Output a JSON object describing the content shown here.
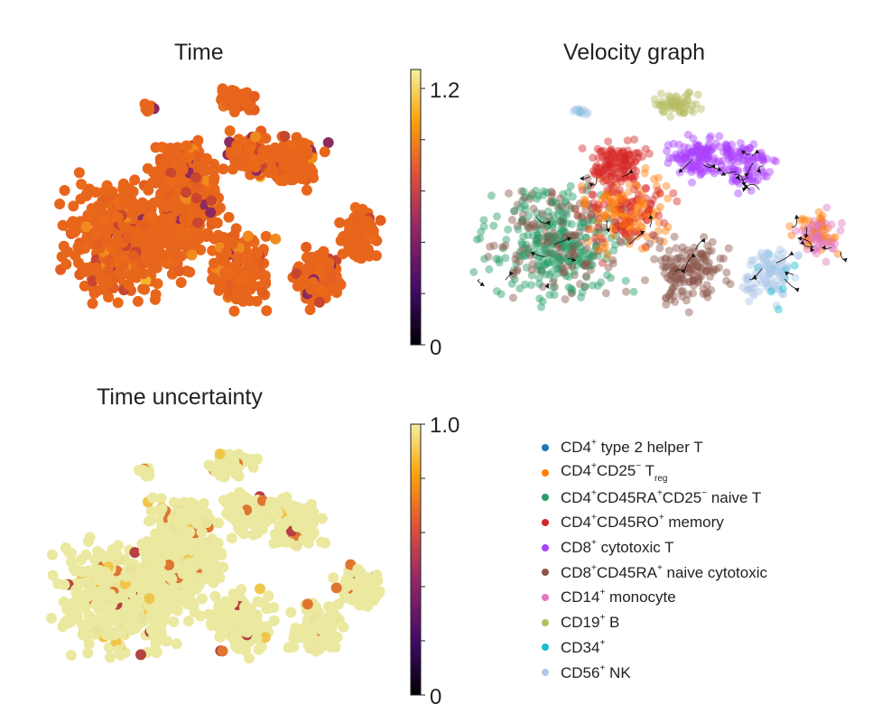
{
  "chart_data": [
    {
      "type": "scatter",
      "title": "Time",
      "colorbar": {
        "colormap": "inferno-like",
        "min_label": "0",
        "max_label": "1.2",
        "range": [
          0,
          1.25
        ]
      },
      "dominant_value": 0.95,
      "xlabel": "",
      "ylabel": ""
    },
    {
      "type": "scatter",
      "title": "Velocity graph",
      "overlay": "velocity streamlines with arrows",
      "color_by": "cell type (see legend)",
      "xlabel": "",
      "ylabel": ""
    },
    {
      "type": "scatter",
      "title": "Time uncertainty",
      "colorbar": {
        "colormap": "inferno-like",
        "min_label": "0",
        "max_label": "1.0",
        "range": [
          0,
          1.0
        ]
      },
      "dominant_value": 0.98,
      "xlabel": "",
      "ylabel": ""
    }
  ],
  "legend": {
    "items": [
      {
        "key": "cd4_th2",
        "color": "#1f77b4",
        "parts": [
          [
            "CD4",
            ""
          ],
          [
            "+",
            "sup"
          ],
          [
            " type 2 helper T",
            ""
          ]
        ]
      },
      {
        "key": "cd4_treg",
        "color": "#ff7f0e",
        "parts": [
          [
            "CD4",
            ""
          ],
          [
            "+",
            "sup"
          ],
          [
            "CD25",
            ""
          ],
          [
            "−",
            "sup"
          ],
          [
            " T",
            ""
          ],
          [
            "reg",
            "sub"
          ]
        ]
      },
      {
        "key": "cd4_naive",
        "color": "#279e68",
        "parts": [
          [
            "CD4",
            ""
          ],
          [
            "+",
            "sup"
          ],
          [
            "CD45RA",
            ""
          ],
          [
            "+",
            "sup"
          ],
          [
            "CD25",
            ""
          ],
          [
            "−",
            "sup"
          ],
          [
            " naive T",
            ""
          ]
        ]
      },
      {
        "key": "cd4_memory",
        "color": "#d62728",
        "parts": [
          [
            "CD4",
            ""
          ],
          [
            "+",
            "sup"
          ],
          [
            "CD45RO",
            ""
          ],
          [
            "+",
            "sup"
          ],
          [
            " memory",
            ""
          ]
        ]
      },
      {
        "key": "cd8_cytotoxic",
        "color": "#aa40fc",
        "parts": [
          [
            "CD8",
            ""
          ],
          [
            "+",
            "sup"
          ],
          [
            " cytotoxic T",
            ""
          ]
        ]
      },
      {
        "key": "cd8_naive",
        "color": "#8c564b",
        "parts": [
          [
            "CD8",
            ""
          ],
          [
            "+",
            "sup"
          ],
          [
            "CD45RA",
            ""
          ],
          [
            "+",
            "sup"
          ],
          [
            " naive cytotoxic",
            ""
          ]
        ]
      },
      {
        "key": "cd14_mono",
        "color": "#e377c2",
        "parts": [
          [
            "CD14",
            ""
          ],
          [
            "+",
            "sup"
          ],
          [
            " monocyte",
            ""
          ]
        ]
      },
      {
        "key": "cd19_b",
        "color": "#b5bd61",
        "parts": [
          [
            "CD19",
            ""
          ],
          [
            "+",
            "sup"
          ],
          [
            " B",
            ""
          ]
        ]
      },
      {
        "key": "cd34",
        "color": "#17becf",
        "parts": [
          [
            "CD34",
            ""
          ],
          [
            "+",
            "sup"
          ]
        ]
      },
      {
        "key": "cd56_nk",
        "color": "#aec7e8",
        "parts": [
          [
            "CD56",
            ""
          ],
          [
            "+",
            "sup"
          ],
          [
            " NK",
            ""
          ]
        ]
      }
    ]
  },
  "colors": {
    "time_main": "#e8661c",
    "uncertainty_main": "#ebe8a0",
    "cbar_stops": [
      "#000004",
      "#420a68",
      "#932667",
      "#dd513a",
      "#fca50a",
      "#f2f0a0"
    ]
  }
}
